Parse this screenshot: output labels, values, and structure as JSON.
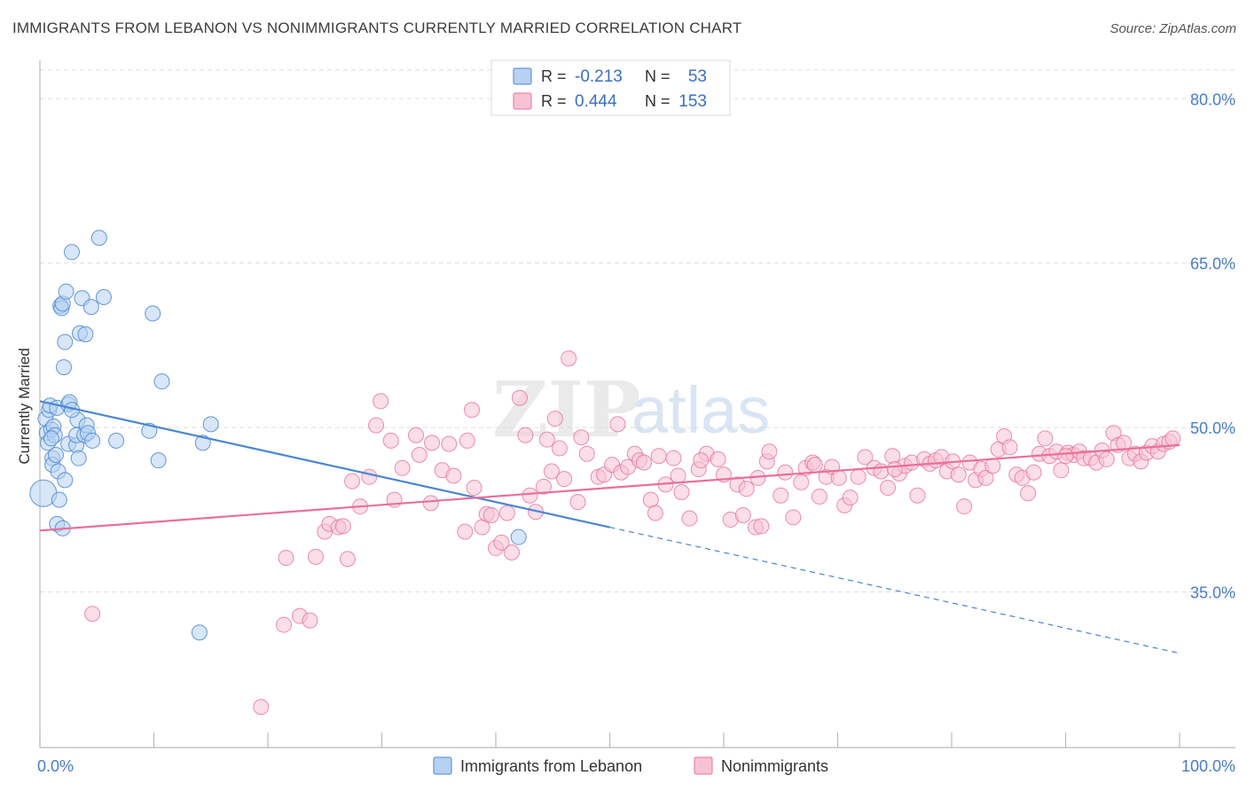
{
  "header": {
    "title": "IMMIGRANTS FROM LEBANON VS NONIMMIGRANTS CURRENTLY MARRIED CORRELATION CHART",
    "source": "Source: ZipAtlas.com"
  },
  "watermark": {
    "zip": "ZIP",
    "atlas": "atlas"
  },
  "colors": {
    "blue": "#4a86d4",
    "blue_fill": "#b7d1f2",
    "pink": "#e8709a",
    "pink_fill": "#f7c3d4",
    "tick_text": "#4a7cc9",
    "grid": "#dddddd"
  },
  "chart_data": {
    "type": "scatter",
    "title": "IMMIGRANTS FROM LEBANON VS NONIMMIGRANTS CURRENTLY MARRIED CORRELATION CHART",
    "xlabel": "",
    "ylabel": "Currently Married",
    "xlim": [
      0,
      100
    ],
    "ylim": [
      20.8,
      83.5
    ],
    "x_ticks": [
      "0.0%",
      "100.0%"
    ],
    "y_ticks": [
      {
        "value": 35.0,
        "label": "35.0%"
      },
      {
        "value": 50.0,
        "label": "50.0%"
      },
      {
        "value": 65.0,
        "label": "65.0%"
      },
      {
        "value": 80.0,
        "label": "80.0%"
      }
    ],
    "grid": true,
    "legend_placement": "top-center",
    "stats": [
      {
        "r_label": "R =",
        "r": "-0.213",
        "n_label": "N =",
        "n": "53"
      },
      {
        "r_label": "R =",
        "r": "0.444",
        "n_label": "N =",
        "n": "153"
      }
    ],
    "series": [
      {
        "name": "Immigrants from Lebanon",
        "color": "#4a86d4",
        "trend": {
          "x0": 0,
          "y0": 52.4,
          "x1": 50,
          "y1": 40.9,
          "dash_to_x": 100,
          "dash_to_y": 29.4
        },
        "points": [
          [
            0.3,
            44.0
          ],
          [
            0.5,
            50.8
          ],
          [
            0.6,
            49.5
          ],
          [
            0.7,
            48.6
          ],
          [
            0.8,
            51.6
          ],
          [
            0.9,
            52.0
          ],
          [
            1.0,
            49.8
          ],
          [
            1.1,
            47.2
          ],
          [
            1.1,
            46.6
          ],
          [
            1.2,
            50.1
          ],
          [
            1.3,
            49.3
          ],
          [
            1.4,
            47.5
          ],
          [
            1.5,
            41.2
          ],
          [
            1.5,
            51.8
          ],
          [
            1.6,
            46.0
          ],
          [
            1.7,
            43.4
          ],
          [
            1.8,
            61.1
          ],
          [
            1.9,
            60.9
          ],
          [
            2.0,
            61.3
          ],
          [
            2.0,
            40.8
          ],
          [
            2.1,
            55.5
          ],
          [
            2.2,
            57.8
          ],
          [
            2.2,
            45.2
          ],
          [
            2.3,
            62.4
          ],
          [
            2.5,
            48.5
          ],
          [
            2.5,
            52.1
          ],
          [
            2.6,
            52.3
          ],
          [
            2.8,
            66.0
          ],
          [
            3.2,
            48.4
          ],
          [
            3.2,
            49.3
          ],
          [
            3.3,
            50.7
          ],
          [
            3.4,
            47.2
          ],
          [
            3.5,
            58.6
          ],
          [
            3.7,
            61.8
          ],
          [
            3.9,
            49.3
          ],
          [
            4.0,
            58.5
          ],
          [
            4.1,
            50.2
          ],
          [
            4.2,
            49.5
          ],
          [
            4.5,
            61.0
          ],
          [
            4.6,
            48.8
          ],
          [
            5.2,
            67.3
          ],
          [
            5.6,
            61.9
          ],
          [
            6.7,
            48.8
          ],
          [
            9.6,
            49.7
          ],
          [
            9.9,
            60.4
          ],
          [
            10.4,
            47.0
          ],
          [
            10.7,
            54.2
          ],
          [
            14.3,
            48.6
          ],
          [
            15.0,
            50.3
          ],
          [
            14.0,
            31.3
          ],
          [
            42.0,
            40.0
          ],
          [
            1.0,
            49.0
          ],
          [
            2.8,
            51.6
          ]
        ]
      },
      {
        "name": "Nonimmigrants",
        "color": "#e8709a",
        "trend": {
          "x0": 0,
          "y0": 40.6,
          "x1": 100,
          "y1": 48.4
        },
        "points": [
          [
            4.6,
            33.0
          ],
          [
            19.4,
            24.5
          ],
          [
            21.4,
            32.0
          ],
          [
            21.6,
            38.1
          ],
          [
            22.8,
            32.8
          ],
          [
            23.7,
            32.4
          ],
          [
            24.2,
            38.2
          ],
          [
            25.0,
            40.5
          ],
          [
            25.4,
            41.2
          ],
          [
            26.2,
            40.9
          ],
          [
            26.6,
            41.0
          ],
          [
            27.0,
            38.0
          ],
          [
            27.4,
            45.1
          ],
          [
            28.1,
            42.8
          ],
          [
            28.9,
            45.5
          ],
          [
            29.5,
            50.2
          ],
          [
            29.9,
            52.4
          ],
          [
            30.8,
            48.8
          ],
          [
            31.1,
            43.4
          ],
          [
            31.8,
            46.3
          ],
          [
            33.0,
            49.3
          ],
          [
            33.3,
            47.5
          ],
          [
            34.3,
            43.1
          ],
          [
            34.4,
            48.6
          ],
          [
            35.3,
            46.1
          ],
          [
            35.9,
            48.5
          ],
          [
            36.3,
            45.6
          ],
          [
            37.3,
            40.5
          ],
          [
            37.5,
            48.8
          ],
          [
            37.9,
            51.6
          ],
          [
            38.1,
            44.5
          ],
          [
            38.8,
            40.9
          ],
          [
            39.2,
            42.1
          ],
          [
            39.6,
            42.0
          ],
          [
            40.0,
            39.0
          ],
          [
            40.5,
            39.5
          ],
          [
            41.0,
            42.2
          ],
          [
            41.4,
            38.6
          ],
          [
            42.1,
            52.7
          ],
          [
            42.6,
            49.3
          ],
          [
            43.0,
            43.8
          ],
          [
            43.5,
            42.3
          ],
          [
            44.2,
            44.6
          ],
          [
            44.5,
            48.9
          ],
          [
            44.9,
            46.0
          ],
          [
            45.2,
            50.8
          ],
          [
            45.6,
            48.1
          ],
          [
            46.0,
            45.3
          ],
          [
            46.4,
            56.3
          ],
          [
            47.2,
            43.2
          ],
          [
            47.5,
            49.1
          ],
          [
            48.0,
            47.6
          ],
          [
            49.0,
            45.5
          ],
          [
            49.5,
            45.7
          ],
          [
            50.2,
            46.6
          ],
          [
            50.7,
            50.3
          ],
          [
            51.0,
            45.9
          ],
          [
            51.6,
            46.4
          ],
          [
            52.2,
            47.6
          ],
          [
            52.6,
            47.0
          ],
          [
            53.6,
            43.4
          ],
          [
            54.0,
            42.2
          ],
          [
            54.3,
            47.4
          ],
          [
            54.9,
            44.8
          ],
          [
            55.6,
            47.2
          ],
          [
            56.0,
            45.6
          ],
          [
            56.3,
            44.1
          ],
          [
            57.0,
            41.7
          ],
          [
            57.8,
            46.2
          ],
          [
            58.5,
            47.6
          ],
          [
            59.5,
            47.1
          ],
          [
            60.0,
            45.7
          ],
          [
            60.6,
            41.6
          ],
          [
            61.2,
            44.8
          ],
          [
            61.7,
            42.0
          ],
          [
            62.0,
            44.4
          ],
          [
            62.8,
            40.9
          ],
          [
            63.3,
            41.0
          ],
          [
            63.8,
            46.9
          ],
          [
            64.0,
            47.8
          ],
          [
            65.0,
            43.8
          ],
          [
            65.4,
            45.9
          ],
          [
            66.1,
            41.8
          ],
          [
            66.8,
            45.0
          ],
          [
            67.2,
            46.3
          ],
          [
            67.8,
            46.8
          ],
          [
            68.4,
            43.7
          ],
          [
            69.0,
            45.5
          ],
          [
            69.5,
            46.4
          ],
          [
            70.1,
            45.4
          ],
          [
            70.6,
            42.9
          ],
          [
            71.1,
            43.6
          ],
          [
            71.8,
            45.5
          ],
          [
            72.4,
            47.3
          ],
          [
            73.2,
            46.3
          ],
          [
            73.8,
            46.0
          ],
          [
            74.4,
            44.5
          ],
          [
            74.8,
            47.4
          ],
          [
            75.4,
            45.8
          ],
          [
            75.9,
            46.5
          ],
          [
            76.5,
            46.8
          ],
          [
            77.0,
            43.8
          ],
          [
            77.6,
            47.1
          ],
          [
            78.1,
            46.7
          ],
          [
            78.6,
            47.0
          ],
          [
            79.1,
            47.3
          ],
          [
            79.6,
            46.0
          ],
          [
            80.1,
            46.9
          ],
          [
            80.6,
            45.7
          ],
          [
            81.1,
            42.8
          ],
          [
            81.6,
            46.8
          ],
          [
            82.1,
            45.2
          ],
          [
            82.6,
            46.2
          ],
          [
            83.0,
            45.4
          ],
          [
            83.6,
            46.5
          ],
          [
            84.1,
            48.0
          ],
          [
            84.6,
            49.2
          ],
          [
            85.1,
            48.2
          ],
          [
            85.7,
            45.7
          ],
          [
            86.2,
            45.4
          ],
          [
            86.7,
            44.0
          ],
          [
            87.2,
            45.9
          ],
          [
            87.7,
            47.6
          ],
          [
            88.2,
            49.0
          ],
          [
            88.6,
            47.4
          ],
          [
            89.2,
            47.8
          ],
          [
            89.6,
            46.1
          ],
          [
            90.2,
            47.7
          ],
          [
            90.7,
            47.5
          ],
          [
            91.2,
            47.8
          ],
          [
            91.6,
            47.2
          ],
          [
            92.2,
            47.2
          ],
          [
            92.7,
            46.8
          ],
          [
            93.2,
            47.9
          ],
          [
            93.6,
            47.1
          ],
          [
            94.2,
            49.5
          ],
          [
            94.6,
            48.4
          ],
          [
            95.1,
            48.6
          ],
          [
            95.6,
            47.2
          ],
          [
            96.1,
            47.6
          ],
          [
            96.6,
            46.9
          ],
          [
            97.1,
            47.7
          ],
          [
            97.6,
            48.3
          ],
          [
            98.1,
            47.8
          ],
          [
            98.6,
            48.5
          ],
          [
            99.1,
            48.7
          ],
          [
            99.4,
            49.0
          ],
          [
            75.0,
            46.2
          ],
          [
            68.0,
            46.6
          ],
          [
            58.0,
            47.0
          ],
          [
            53.0,
            46.8
          ],
          [
            63.0,
            45.4
          ],
          [
            90.0,
            47.4
          ]
        ]
      }
    ],
    "legend": [
      {
        "name": "Immigrants from Lebanon"
      },
      {
        "name": "Nonimmigrants"
      }
    ]
  }
}
